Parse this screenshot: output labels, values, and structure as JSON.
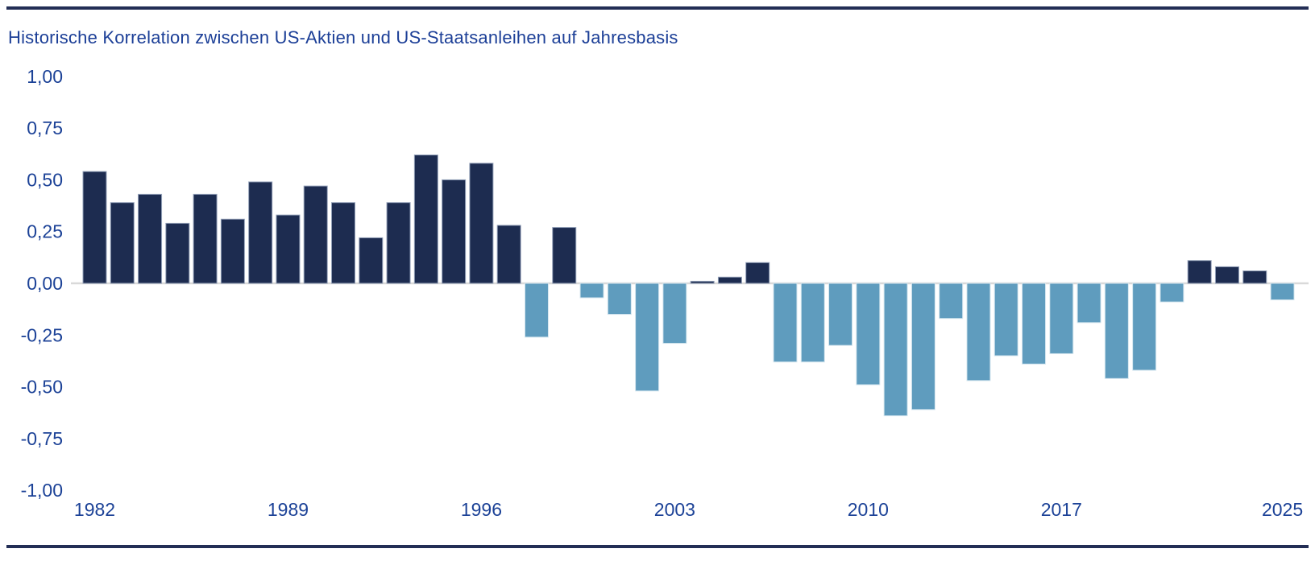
{
  "page": {
    "title": "Historische Korrelation zwischen US-Aktien und US-Staatsanleihen auf Jahresbasis"
  },
  "chart_data": {
    "type": "bar",
    "title": "Historische Korrelation zwischen US-Aktien und US-Staatsanleihen auf Jahresbasis",
    "categories": [
      1982,
      1983,
      1984,
      1985,
      1986,
      1987,
      1988,
      1989,
      1990,
      1991,
      1992,
      1993,
      1994,
      1995,
      1996,
      1997,
      1998,
      1999,
      2000,
      2001,
      2002,
      2003,
      2004,
      2005,
      2006,
      2007,
      2008,
      2009,
      2010,
      2011,
      2012,
      2013,
      2014,
      2015,
      2016,
      2017,
      2018,
      2019,
      2020,
      2021,
      2022,
      2023,
      2024,
      2025
    ],
    "values": [
      0.54,
      0.39,
      0.43,
      0.29,
      0.43,
      0.31,
      0.49,
      0.33,
      0.47,
      0.39,
      0.22,
      0.39,
      0.62,
      0.5,
      0.58,
      0.28,
      -0.26,
      0.27,
      -0.07,
      -0.15,
      -0.52,
      -0.29,
      0.01,
      0.03,
      0.1,
      -0.38,
      -0.38,
      -0.3,
      -0.49,
      -0.64,
      -0.61,
      -0.17,
      -0.47,
      -0.35,
      -0.39,
      -0.34,
      -0.19,
      -0.46,
      -0.42,
      -0.09,
      0.11,
      0.08,
      0.06,
      -0.08
    ],
    "xlabel": "",
    "ylabel": "",
    "ylim": [
      -1.0,
      1.0
    ],
    "grid": "zero-line-only",
    "legend": "none",
    "y_ticks": [
      {
        "value": 1.0,
        "label": "1,00"
      },
      {
        "value": 0.75,
        "label": "0,75"
      },
      {
        "value": 0.5,
        "label": "0,50"
      },
      {
        "value": 0.25,
        "label": "0,25"
      },
      {
        "value": 0.0,
        "label": "0,00"
      },
      {
        "value": -0.25,
        "label": "-0,25"
      },
      {
        "value": -0.5,
        "label": "-0,50"
      },
      {
        "value": -0.75,
        "label": "-0,75"
      },
      {
        "value": -1.0,
        "label": "-1,00"
      }
    ],
    "x_tick_years": [
      "1982",
      "1989",
      "1996",
      "2003",
      "2010",
      "2017",
      "2025"
    ],
    "colors": {
      "positive_bar": "#1d2c50",
      "negative_bar": "#5f9cbe",
      "positive_bar_stroke": "#93a0b8",
      "negative_bar_stroke": "#d5e6ef",
      "title_text": "#1c3f97",
      "tick_text": "#1c4297",
      "zero_line": "#d9d9d9",
      "page_rule": "#232e55"
    }
  }
}
